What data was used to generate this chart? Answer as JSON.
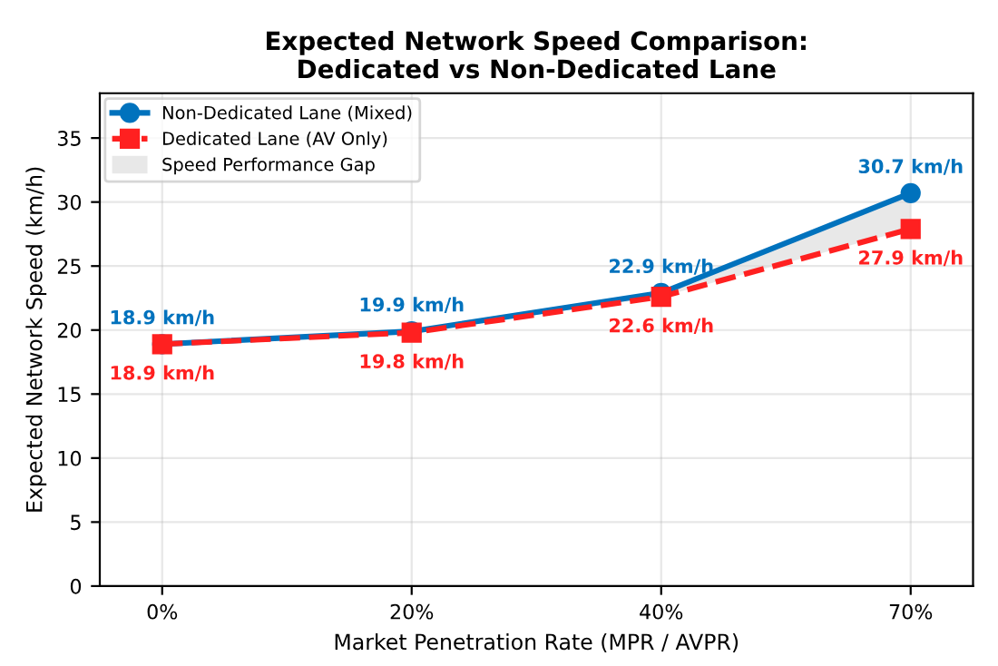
{
  "chart_data": {
    "type": "line",
    "title": "Expected Network Speed Comparison:\nDedicated vs Non-Dedicated Lane",
    "xlabel": "Market Penetration Rate (MPR / AVPR)",
    "ylabel": "Expected Network Speed (km/h)",
    "categories": [
      "0%",
      "20%",
      "40%",
      "70%"
    ],
    "series": [
      {
        "name": "Non-Dedicated Lane (Mixed)",
        "color": "#0072bd",
        "marker": "circle",
        "line_style": "solid",
        "values": [
          18.9,
          19.9,
          22.9,
          30.7
        ],
        "value_labels": [
          "18.9 km/h",
          "19.9 km/h",
          "22.9 km/h",
          "30.7 km/h"
        ],
        "lower": [
          18.9,
          19.8,
          22.6,
          27.9
        ],
        "upper": [
          18.9,
          19.9,
          22.9,
          30.7
        ]
      },
      {
        "name": "Dedicated Lane (AV Only)",
        "color": "#ff2020",
        "marker": "square",
        "line_style": "dashed",
        "values": [
          18.9,
          19.8,
          22.6,
          27.9
        ],
        "value_labels": [
          "18.9 km/h",
          "19.8 km/h",
          "22.6 km/h",
          "27.9 km/h"
        ]
      }
    ],
    "annotations": [
      "Speed Performance Gap"
    ],
    "ylim": [
      0,
      38.5
    ],
    "yticks": [
      0,
      5,
      10,
      15,
      20,
      25,
      30,
      35
    ],
    "grid": true,
    "legend": "top left"
  }
}
